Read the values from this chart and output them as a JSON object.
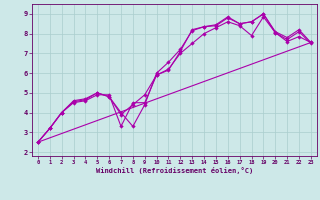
{
  "xlabel": "Windchill (Refroidissement éolien,°C)",
  "bg_color": "#cde8e8",
  "grid_color": "#aacece",
  "line_color": "#aa00aa",
  "spine_color": "#660066",
  "xlim": [
    -0.5,
    23.5
  ],
  "ylim": [
    1.8,
    9.5
  ],
  "xticks": [
    0,
    1,
    2,
    3,
    4,
    5,
    6,
    7,
    8,
    9,
    10,
    11,
    12,
    13,
    14,
    15,
    16,
    17,
    18,
    19,
    20,
    21,
    22,
    23
  ],
  "yticks": [
    2,
    3,
    4,
    5,
    6,
    7,
    8,
    9
  ],
  "line1_x": [
    0,
    1,
    2,
    3,
    4,
    5,
    6,
    7,
    8,
    9,
    10,
    11,
    12,
    13,
    14,
    15,
    16,
    17,
    18,
    19,
    20,
    21,
    22,
    23
  ],
  "line1_y": [
    2.5,
    3.2,
    4.0,
    4.5,
    4.6,
    4.9,
    4.9,
    3.3,
    4.5,
    4.5,
    5.9,
    6.15,
    7.1,
    8.2,
    8.35,
    8.4,
    8.8,
    8.5,
    8.6,
    9.0,
    8.1,
    7.8,
    8.2,
    7.55
  ],
  "line2_x": [
    0,
    1,
    2,
    3,
    4,
    5,
    6,
    7,
    8,
    9,
    10,
    11,
    12,
    13,
    14,
    15,
    16,
    17,
    18,
    19,
    20,
    21,
    22,
    23
  ],
  "line2_y": [
    2.5,
    3.2,
    4.0,
    4.6,
    4.7,
    5.0,
    4.8,
    3.9,
    4.4,
    4.9,
    5.9,
    6.2,
    7.0,
    7.5,
    8.0,
    8.3,
    8.6,
    8.4,
    7.9,
    8.85,
    8.05,
    7.6,
    7.85,
    7.55
  ],
  "line3_x": [
    0,
    1,
    2,
    3,
    4,
    5,
    6,
    7,
    8,
    9,
    10,
    11,
    12,
    13,
    14,
    15,
    16,
    17,
    18,
    19,
    20,
    21,
    22,
    23
  ],
  "line3_y": [
    2.5,
    3.2,
    4.0,
    4.55,
    4.65,
    5.0,
    4.8,
    4.0,
    3.3,
    4.4,
    6.0,
    6.55,
    7.2,
    8.15,
    8.35,
    8.45,
    8.85,
    8.5,
    8.6,
    9.0,
    8.05,
    7.7,
    8.1,
    7.5
  ],
  "line4_x": [
    0,
    23
  ],
  "line4_y": [
    2.5,
    7.55
  ]
}
